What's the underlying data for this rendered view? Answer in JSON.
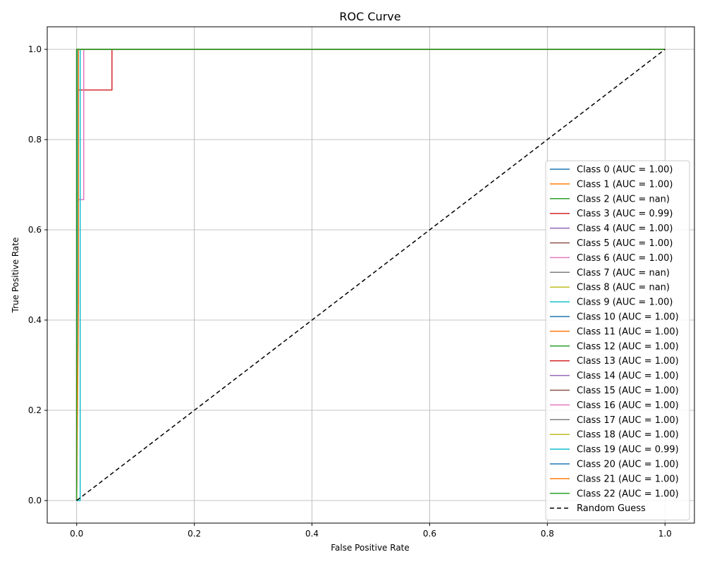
{
  "chart_data": {
    "type": "line",
    "title": "ROC Curve",
    "xlabel": "False Positive Rate",
    "ylabel": "True Positive Rate",
    "xlim": [
      -0.05,
      1.05
    ],
    "ylim": [
      -0.05,
      1.05
    ],
    "xticks": [
      0.0,
      0.2,
      0.4,
      0.6,
      0.8,
      1.0
    ],
    "yticks": [
      0.0,
      0.2,
      0.4,
      0.6,
      0.8,
      1.0
    ],
    "xtick_labels": [
      "0.0",
      "0.2",
      "0.4",
      "0.6",
      "0.8",
      "1.0"
    ],
    "ytick_labels": [
      "0.0",
      "0.2",
      "0.4",
      "0.6",
      "0.8",
      "1.0"
    ],
    "grid": true,
    "legend_position": "lower-right",
    "series": [
      {
        "name": "Class 0 (AUC = 1.00)",
        "color": "#1f77b4",
        "x": [
          0,
          0,
          1
        ],
        "y": [
          0,
          1,
          1
        ]
      },
      {
        "name": "Class 1 (AUC = 1.00)",
        "color": "#ff7f0e",
        "x": [
          0,
          0.002,
          0.002,
          1
        ],
        "y": [
          0,
          0.5,
          1,
          1
        ]
      },
      {
        "name": "Class 2 (AUC = nan)",
        "color": "#2ca02c",
        "x": [
          0,
          1
        ],
        "y": [
          1,
          1
        ]
      },
      {
        "name": "Class 3 (AUC = 0.99)",
        "color": "#d62728",
        "x": [
          0,
          0.002,
          0.06,
          0.06,
          1
        ],
        "y": [
          0,
          0.91,
          0.91,
          1,
          1
        ]
      },
      {
        "name": "Class 4 (AUC = 1.00)",
        "color": "#9467bd",
        "x": [
          0,
          0,
          1
        ],
        "y": [
          0,
          1,
          1
        ]
      },
      {
        "name": "Class 5 (AUC = 1.00)",
        "color": "#8c564b",
        "x": [
          0,
          0,
          1
        ],
        "y": [
          0,
          1,
          1
        ]
      },
      {
        "name": "Class 6 (AUC = 1.00)",
        "color": "#e377c2",
        "x": [
          0,
          0.002,
          0.012,
          0.012,
          1
        ],
        "y": [
          0,
          0.667,
          0.667,
          1,
          1
        ]
      },
      {
        "name": "Class 7 (AUC = nan)",
        "color": "#7f7f7f",
        "x": [
          0,
          1
        ],
        "y": [
          1,
          1
        ]
      },
      {
        "name": "Class 8 (AUC = nan)",
        "color": "#bcbd22",
        "x": [
          0,
          1
        ],
        "y": [
          1,
          1
        ]
      },
      {
        "name": "Class 9 (AUC = 1.00)",
        "color": "#17becf",
        "x": [
          0,
          0.002,
          0.002,
          1
        ],
        "y": [
          0,
          0.889,
          1,
          1
        ]
      },
      {
        "name": "Class 10 (AUC = 1.00)",
        "color": "#1f77b4",
        "x": [
          0,
          0,
          1
        ],
        "y": [
          0,
          1,
          1
        ]
      },
      {
        "name": "Class 11 (AUC = 1.00)",
        "color": "#ff7f0e",
        "x": [
          0,
          0.003,
          0.003,
          1
        ],
        "y": [
          0,
          0.44,
          1,
          1
        ]
      },
      {
        "name": "Class 12 (AUC = 1.00)",
        "color": "#2ca02c",
        "x": [
          0,
          0,
          1
        ],
        "y": [
          0,
          1,
          1
        ]
      },
      {
        "name": "Class 13 (AUC = 1.00)",
        "color": "#d62728",
        "x": [
          0,
          0,
          1
        ],
        "y": [
          0,
          1,
          1
        ]
      },
      {
        "name": "Class 14 (AUC = 1.00)",
        "color": "#9467bd",
        "x": [
          0,
          0,
          1
        ],
        "y": [
          0,
          1,
          1
        ]
      },
      {
        "name": "Class 15 (AUC = 1.00)",
        "color": "#8c564b",
        "x": [
          0,
          0,
          1
        ],
        "y": [
          0,
          1,
          1
        ]
      },
      {
        "name": "Class 16 (AUC = 1.00)",
        "color": "#e377c2",
        "x": [
          0,
          0,
          1
        ],
        "y": [
          0,
          1,
          1
        ]
      },
      {
        "name": "Class 17 (AUC = 1.00)",
        "color": "#7f7f7f",
        "x": [
          0,
          0,
          1
        ],
        "y": [
          0,
          1,
          1
        ]
      },
      {
        "name": "Class 18 (AUC = 1.00)",
        "color": "#bcbd22",
        "x": [
          0,
          0,
          1
        ],
        "y": [
          0,
          1,
          1
        ]
      },
      {
        "name": "Class 19 (AUC = 0.99)",
        "color": "#17becf",
        "x": [
          0,
          0.006,
          0.006,
          1
        ],
        "y": [
          0,
          0,
          1,
          1
        ]
      },
      {
        "name": "Class 20 (AUC = 1.00)",
        "color": "#1f77b4",
        "x": [
          0,
          0,
          1
        ],
        "y": [
          0,
          1,
          1
        ]
      },
      {
        "name": "Class 21 (AUC = 1.00)",
        "color": "#ff7f0e",
        "x": [
          0,
          0,
          1
        ],
        "y": [
          0,
          1,
          1
        ]
      },
      {
        "name": "Class 22 (AUC = 1.00)",
        "color": "#2ca02c",
        "x": [
          0,
          0,
          1
        ],
        "y": [
          0,
          1,
          1
        ]
      },
      {
        "name": "Random Guess",
        "color": "#000000",
        "dashed": true,
        "x": [
          0,
          1
        ],
        "y": [
          0,
          1
        ]
      }
    ]
  }
}
